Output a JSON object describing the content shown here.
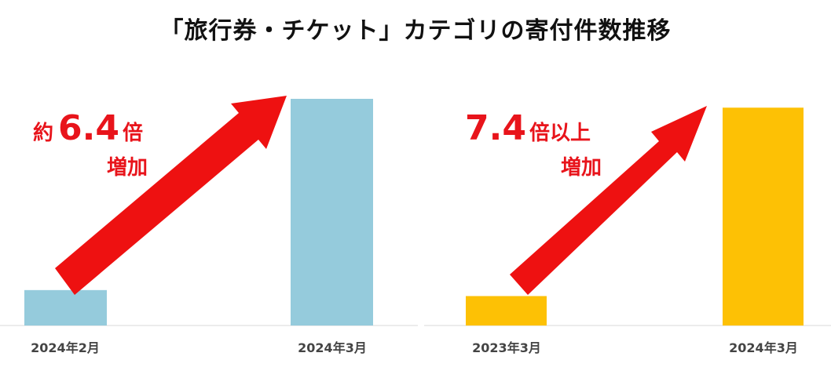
{
  "title": "「旅行券・チケット」カテゴリの寄付件数推移",
  "colors": {
    "arrow": "#ee1111",
    "annotation_text": "#e8141b",
    "axis_line": "#e6e6e6"
  },
  "chart_data": [
    {
      "type": "bar",
      "categories": [
        "2024年2月",
        "2024年3月"
      ],
      "values": [
        1,
        6.4
      ],
      "ylim": [
        0,
        6.4
      ],
      "bar_color": "#95cbdc",
      "grid": false,
      "annotation": {
        "prefix": "約",
        "number": "6.4",
        "suffix": "倍",
        "line2": "増加"
      }
    },
    {
      "type": "bar",
      "categories": [
        "2023年3月",
        "2024年3月"
      ],
      "values": [
        1,
        7.4
      ],
      "ylim": [
        0,
        7.7
      ],
      "bar_color": "#fdc105",
      "grid": false,
      "annotation": {
        "prefix": "",
        "number": "7.4",
        "suffix": "倍以上",
        "line2": "増加"
      }
    }
  ]
}
